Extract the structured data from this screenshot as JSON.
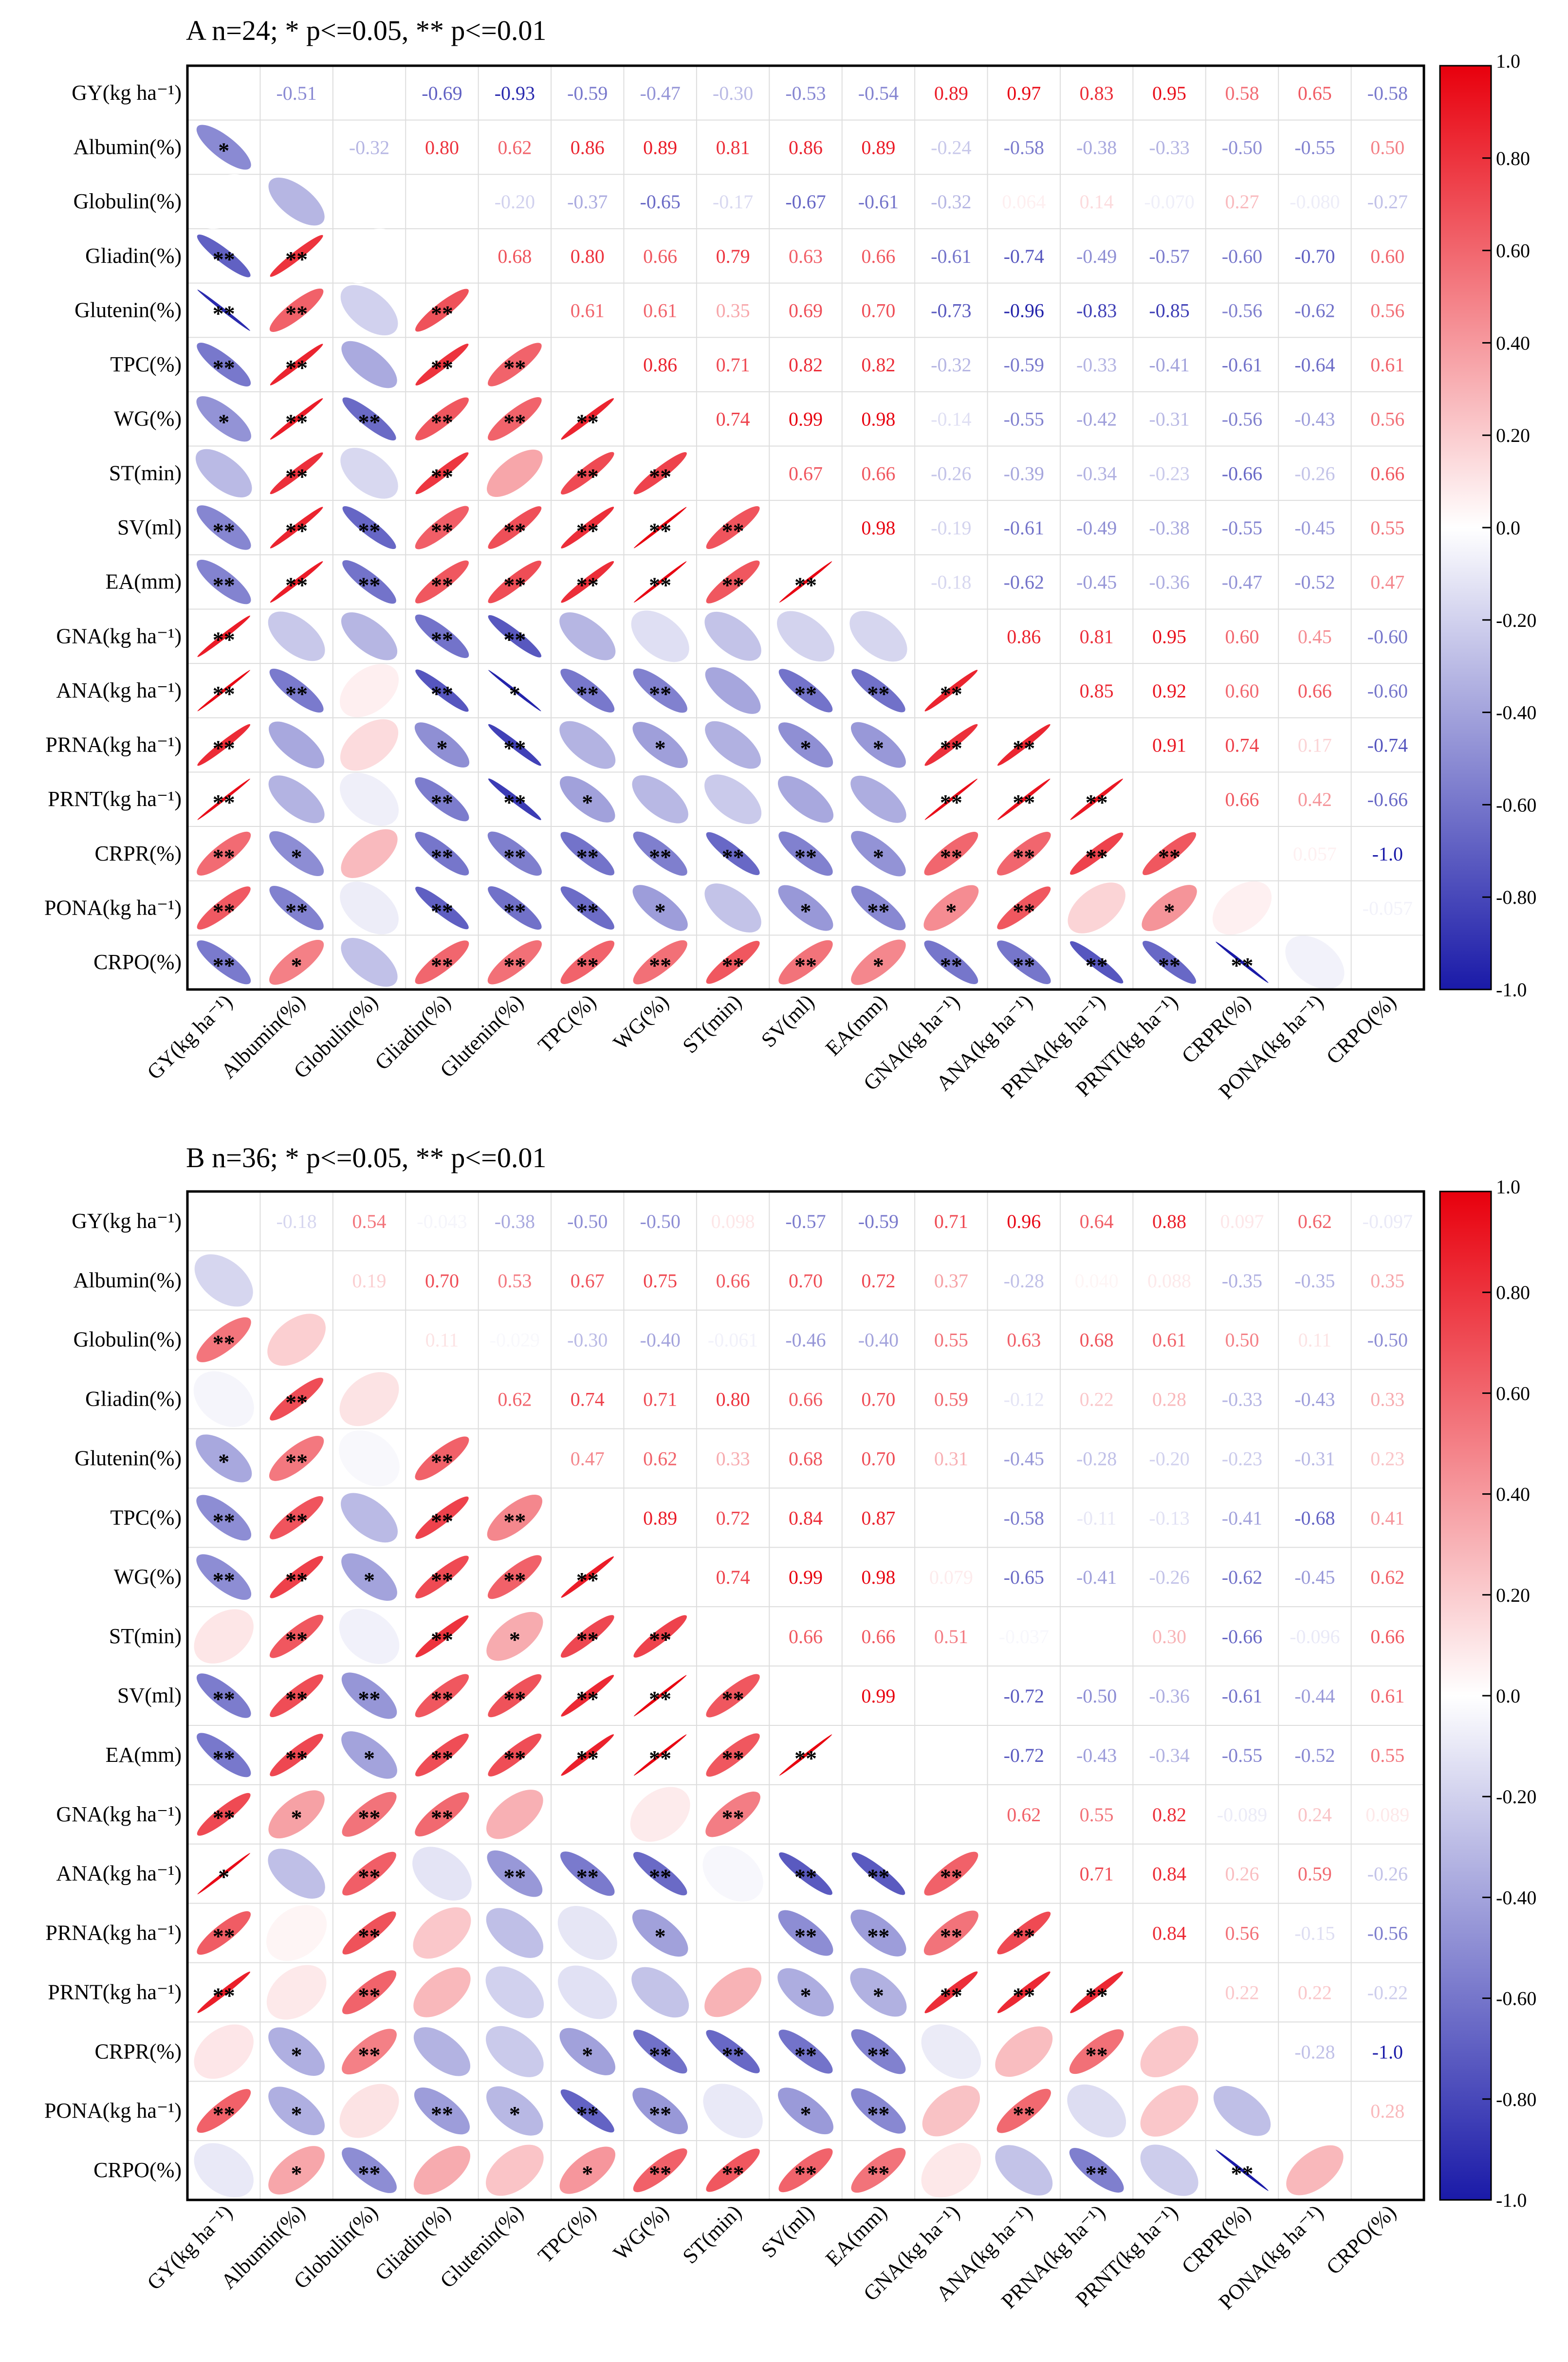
{
  "figure": {
    "panel_a_title": "A n=24; * p<=0.05, ** p<=0.01",
    "panel_b_title": "B n=36; * p<=0.05, ** p<=0.01"
  },
  "chart_data": [
    {
      "type": "heatmap",
      "title": "A n=24; * p<=0.05, ** p<=0.01",
      "variables": [
        "GY(kg ha⁻¹)",
        "Albumin(%)",
        "Globulin(%)",
        "Gliadin(%)",
        "Glutenin(%)",
        "TPC(%)",
        "WG(%)",
        "ST(min)",
        "SV(ml)",
        "EA(mm)",
        "GNA(kg ha⁻¹)",
        "ANA(kg ha⁻¹)",
        "PRNA(kg ha⁻¹)",
        "PRNT(kg ha⁻¹)",
        "CRPR(%)",
        "PONA(kg ha⁻¹)",
        "CRPO(%)"
      ],
      "upper_labels": [
        [
          "",
          "-0.51",
          "",
          "-0.69",
          "-0.93",
          "-0.59",
          "-0.47",
          "-0.30",
          "-0.53",
          "-0.54",
          "0.89",
          "0.97",
          "0.83",
          "0.95",
          "0.58",
          "0.65",
          "-0.58"
        ],
        [
          "",
          "",
          "-0.32",
          "0.80",
          "0.62",
          "0.86",
          "0.89",
          "0.81",
          "0.86",
          "0.89",
          "-0.24",
          "-0.58",
          "-0.38",
          "-0.33",
          "-0.50",
          "-0.55",
          "0.50"
        ],
        [
          "",
          "",
          "",
          "",
          "-0.20",
          "-0.37",
          "-0.65",
          "-0.17",
          "-0.67",
          "-0.61",
          "-0.32",
          "0.064",
          "0.14",
          "-0.070",
          "0.27",
          "-0.080",
          "-0.27"
        ],
        [
          "",
          "",
          "",
          "",
          "0.68",
          "0.80",
          "0.66",
          "0.79",
          "0.63",
          "0.66",
          "-0.61",
          "-0.74",
          "-0.49",
          "-0.57",
          "-0.60",
          "-0.70",
          "0.60"
        ],
        [
          "",
          "",
          "",
          "",
          "",
          "0.61",
          "0.61",
          "0.35",
          "0.69",
          "0.70",
          "-0.73",
          "-0.96",
          "-0.83",
          "-0.85",
          "-0.56",
          "-0.62",
          "0.56"
        ],
        [
          "",
          "",
          "",
          "",
          "",
          "",
          "0.86",
          "0.71",
          "0.82",
          "0.82",
          "-0.32",
          "-0.59",
          "-0.33",
          "-0.41",
          "-0.61",
          "-0.64",
          "0.61"
        ],
        [
          "",
          "",
          "",
          "",
          "",
          "",
          "",
          "0.74",
          "0.99",
          "0.98",
          "-0.14",
          "-0.55",
          "-0.42",
          "-0.31",
          "-0.56",
          "-0.43",
          "0.56"
        ],
        [
          "",
          "",
          "",
          "",
          "",
          "",
          "",
          "",
          "0.67",
          "0.66",
          "-0.26",
          "-0.39",
          "-0.34",
          "-0.23",
          "-0.66",
          "-0.26",
          "0.66"
        ],
        [
          "",
          "",
          "",
          "",
          "",
          "",
          "",
          "",
          "",
          "0.98",
          "-0.19",
          "-0.61",
          "-0.49",
          "-0.38",
          "-0.55",
          "-0.45",
          "0.55"
        ],
        [
          "",
          "",
          "",
          "",
          "",
          "",
          "",
          "",
          "",
          "",
          "-0.18",
          "-0.62",
          "-0.45",
          "-0.36",
          "-0.47",
          "-0.52",
          "0.47"
        ],
        [
          "",
          "",
          "",
          "",
          "",
          "",
          "",
          "",
          "",
          "",
          "",
          "0.86",
          "0.81",
          "0.95",
          "0.60",
          "0.45",
          "-0.60"
        ],
        [
          "",
          "",
          "",
          "",
          "",
          "",
          "",
          "",
          "",
          "",
          "",
          "",
          "0.85",
          "0.92",
          "0.60",
          "0.66",
          "-0.60"
        ],
        [
          "",
          "",
          "",
          "",
          "",
          "",
          "",
          "",
          "",
          "",
          "",
          "",
          "",
          "0.91",
          "0.74",
          "0.17",
          "-0.74"
        ],
        [
          "",
          "",
          "",
          "",
          "",
          "",
          "",
          "",
          "",
          "",
          "",
          "",
          "",
          "",
          "0.66",
          "0.42",
          "-0.66"
        ],
        [
          "",
          "",
          "",
          "",
          "",
          "",
          "",
          "",
          "",
          "",
          "",
          "",
          "",
          "",
          "",
          "0.057",
          "-1.0"
        ],
        [
          "",
          "",
          "",
          "",
          "",
          "",
          "",
          "",
          "",
          "",
          "",
          "",
          "",
          "",
          "",
          "",
          "-0.057"
        ],
        [
          "",
          "",
          "",
          "",
          "",
          "",
          "",
          "",
          "",
          "",
          "",
          "",
          "",
          "",
          "",
          "",
          ""
        ]
      ],
      "lower_stars": [
        [],
        [
          "*"
        ],
        [
          "",
          ""
        ],
        [
          "**",
          "**",
          ""
        ],
        [
          "**",
          "**",
          "",
          "**"
        ],
        [
          "**",
          "**",
          "",
          "**",
          "**"
        ],
        [
          "*",
          "**",
          "**",
          "**",
          "**",
          "**"
        ],
        [
          "",
          "**",
          "",
          "**",
          "",
          "**",
          "**"
        ],
        [
          "**",
          "**",
          "**",
          "**",
          "**",
          "**",
          "**",
          "**"
        ],
        [
          "**",
          "**",
          "**",
          "**",
          "**",
          "**",
          "**",
          "**",
          "**"
        ],
        [
          "**",
          "",
          "",
          "**",
          "**",
          "",
          "",
          "",
          "",
          ""
        ],
        [
          "**",
          "**",
          "",
          "**",
          "*",
          "**",
          "**",
          "",
          "**",
          "**",
          "**"
        ],
        [
          "**",
          "",
          "",
          "*",
          "**",
          "",
          "*",
          "",
          "*",
          "*",
          "**",
          "**"
        ],
        [
          "**",
          "",
          "",
          "**",
          "**",
          "*",
          "",
          "",
          "",
          "",
          "**",
          "**",
          "**"
        ],
        [
          "**",
          "*",
          "",
          "**",
          "**",
          "**",
          "**",
          "**",
          "**",
          "*",
          "**",
          "**",
          "**",
          "**"
        ],
        [
          "**",
          "**",
          "",
          "**",
          "**",
          "**",
          "*",
          "",
          "*",
          "**",
          "*",
          "**",
          "",
          "*",
          ""
        ],
        [
          "**",
          "*",
          "",
          "**",
          "**",
          "**",
          "**",
          "**",
          "**",
          "*",
          "**",
          "**",
          "**",
          "**",
          "**",
          ""
        ]
      ],
      "colorbar_ticks": [
        "1.0",
        "0.80",
        "0.60",
        "0.40",
        "0.20",
        "0.0",
        "-0.20",
        "-0.40",
        "-0.60",
        "-0.80",
        "-1.0"
      ],
      "colors": {
        "positive": "#e8000d",
        "negative": "#1a1aa8",
        "neutral": "#ffffff"
      }
    },
    {
      "type": "heatmap",
      "title": "B n=36; * p<=0.05, ** p<=0.01",
      "variables": [
        "GY(kg ha⁻¹)",
        "Albumin(%)",
        "Globulin(%)",
        "Gliadin(%)",
        "Glutenin(%)",
        "TPC(%)",
        "WG(%)",
        "ST(min)",
        "SV(ml)",
        "EA(mm)",
        "GNA(kg ha⁻¹)",
        "ANA(kg ha⁻¹)",
        "PRNA(kg ha⁻¹)",
        "PRNT(kg ha⁻¹)",
        "CRPR(%)",
        "PONA(kg ha⁻¹)",
        "CRPO(%)"
      ],
      "upper_labels": [
        [
          "",
          "-0.18",
          "0.54",
          "-0.043",
          "-0.38",
          "-0.50",
          "-0.50",
          "0.098",
          "-0.57",
          "-0.59",
          "0.71",
          "0.96",
          "0.64",
          "0.88",
          "0.097",
          "0.62",
          "-0.097"
        ],
        [
          "",
          "",
          "0.19",
          "0.70",
          "0.53",
          "0.67",
          "0.75",
          "0.66",
          "0.70",
          "0.72",
          "0.37",
          "-0.28",
          "0.040",
          "0.088",
          "-0.35",
          "-0.35",
          "0.35"
        ],
        [
          "",
          "",
          "",
          "0.11",
          "-0.029",
          "-0.30",
          "-0.40",
          "-0.061",
          "-0.46",
          "-0.40",
          "0.55",
          "0.63",
          "0.68",
          "0.61",
          "0.50",
          "0.11",
          "-0.50"
        ],
        [
          "",
          "",
          "",
          "",
          "0.62",
          "0.74",
          "0.71",
          "0.80",
          "0.66",
          "0.70",
          "0.59",
          "-0.12",
          "0.22",
          "0.28",
          "-0.33",
          "-0.43",
          "0.33"
        ],
        [
          "",
          "",
          "",
          "",
          "",
          "0.47",
          "0.62",
          "0.33",
          "0.68",
          "0.70",
          "0.31",
          "-0.45",
          "-0.28",
          "-0.20",
          "-0.23",
          "-0.31",
          "0.23"
        ],
        [
          "",
          "",
          "",
          "",
          "",
          "",
          "0.89",
          "0.72",
          "0.84",
          "0.87",
          "",
          "-0.58",
          "-0.11",
          "-0.13",
          "-0.41",
          "-0.68",
          "0.41"
        ],
        [
          "",
          "",
          "",
          "",
          "",
          "",
          "",
          "0.74",
          "0.99",
          "0.98",
          "0.079",
          "-0.65",
          "-0.41",
          "-0.26",
          "-0.62",
          "-0.45",
          "0.62"
        ],
        [
          "",
          "",
          "",
          "",
          "",
          "",
          "",
          "",
          "0.66",
          "0.66",
          "0.51",
          "-0.037",
          "",
          "0.30",
          "-0.66",
          "-0.096",
          "0.66"
        ],
        [
          "",
          "",
          "",
          "",
          "",
          "",
          "",
          "",
          "",
          "0.99",
          "",
          "-0.72",
          "-0.50",
          "-0.36",
          "-0.61",
          "-0.44",
          "0.61"
        ],
        [
          "",
          "",
          "",
          "",
          "",
          "",
          "",
          "",
          "",
          "",
          "",
          "-0.72",
          "-0.43",
          "-0.34",
          "-0.55",
          "-0.52",
          "0.55"
        ],
        [
          "",
          "",
          "",
          "",
          "",
          "",
          "",
          "",
          "",
          "",
          "",
          "0.62",
          "0.55",
          "0.82",
          "-0.089",
          "0.24",
          "0.089"
        ],
        [
          "",
          "",
          "",
          "",
          "",
          "",
          "",
          "",
          "",
          "",
          "",
          "",
          "0.71",
          "0.84",
          "0.26",
          "0.59",
          "-0.26"
        ],
        [
          "",
          "",
          "",
          "",
          "",
          "",
          "",
          "",
          "",
          "",
          "",
          "",
          "",
          "0.84",
          "0.56",
          "-0.15",
          "-0.56"
        ],
        [
          "",
          "",
          "",
          "",
          "",
          "",
          "",
          "",
          "",
          "",
          "",
          "",
          "",
          "",
          "0.22",
          "0.22",
          "-0.22"
        ],
        [
          "",
          "",
          "",
          "",
          "",
          "",
          "",
          "",
          "",
          "",
          "",
          "",
          "",
          "",
          "",
          "-0.28",
          "-1.0"
        ],
        [
          "",
          "",
          "",
          "",
          "",
          "",
          "",
          "",
          "",
          "",
          "",
          "",
          "",
          "",
          "",
          "",
          "0.28"
        ],
        [
          "",
          "",
          "",
          "",
          "",
          "",
          "",
          "",
          "",
          "",
          "",
          "",
          "",
          "",
          "",
          "",
          ""
        ]
      ],
      "lower_stars": [
        [],
        [
          ""
        ],
        [
          "**",
          ""
        ],
        [
          "",
          "**",
          ""
        ],
        [
          "*",
          "**",
          "",
          "**"
        ],
        [
          "**",
          "**",
          "",
          "**",
          "**"
        ],
        [
          "**",
          "**",
          "*",
          "**",
          "**",
          "**"
        ],
        [
          "",
          "**",
          "",
          "**",
          "*",
          "**",
          "**"
        ],
        [
          "**",
          "**",
          "**",
          "**",
          "**",
          "**",
          "**",
          "**"
        ],
        [
          "**",
          "**",
          "*",
          "**",
          "**",
          "**",
          "**",
          "**",
          "**"
        ],
        [
          "**",
          "*",
          "**",
          "**",
          "",
          "",
          "",
          "**",
          "",
          ""
        ],
        [
          "*",
          "",
          "**",
          "",
          "**",
          "**",
          "**",
          "",
          "**",
          "**",
          "**"
        ],
        [
          "**",
          "",
          "**",
          "",
          "",
          "",
          "*",
          "",
          "**",
          "**",
          "**",
          "**"
        ],
        [
          "**",
          "",
          "**",
          "",
          "",
          "",
          "",
          "",
          "*",
          "*",
          "**",
          "**",
          "**"
        ],
        [
          "",
          "*",
          "**",
          "",
          "",
          "*",
          "**",
          "**",
          "**",
          "**",
          "",
          "",
          "**",
          ""
        ],
        [
          "**",
          "*",
          "",
          "**",
          "*",
          "**",
          "**",
          "",
          "*",
          "**",
          "",
          "**",
          "",
          "",
          ""
        ],
        [
          "",
          "*",
          "**",
          "",
          "",
          "*",
          "**",
          "**",
          "**",
          "**",
          "",
          "",
          "**",
          "",
          "**",
          ""
        ]
      ],
      "colorbar_ticks": [
        "1.0",
        "0.80",
        "0.60",
        "0.40",
        "0.20",
        "0.0",
        "-0.20",
        "-0.40",
        "-0.60",
        "-0.80",
        "-1.0"
      ],
      "colors": {
        "positive": "#e8000d",
        "negative": "#1a1aa8",
        "neutral": "#ffffff"
      }
    }
  ]
}
